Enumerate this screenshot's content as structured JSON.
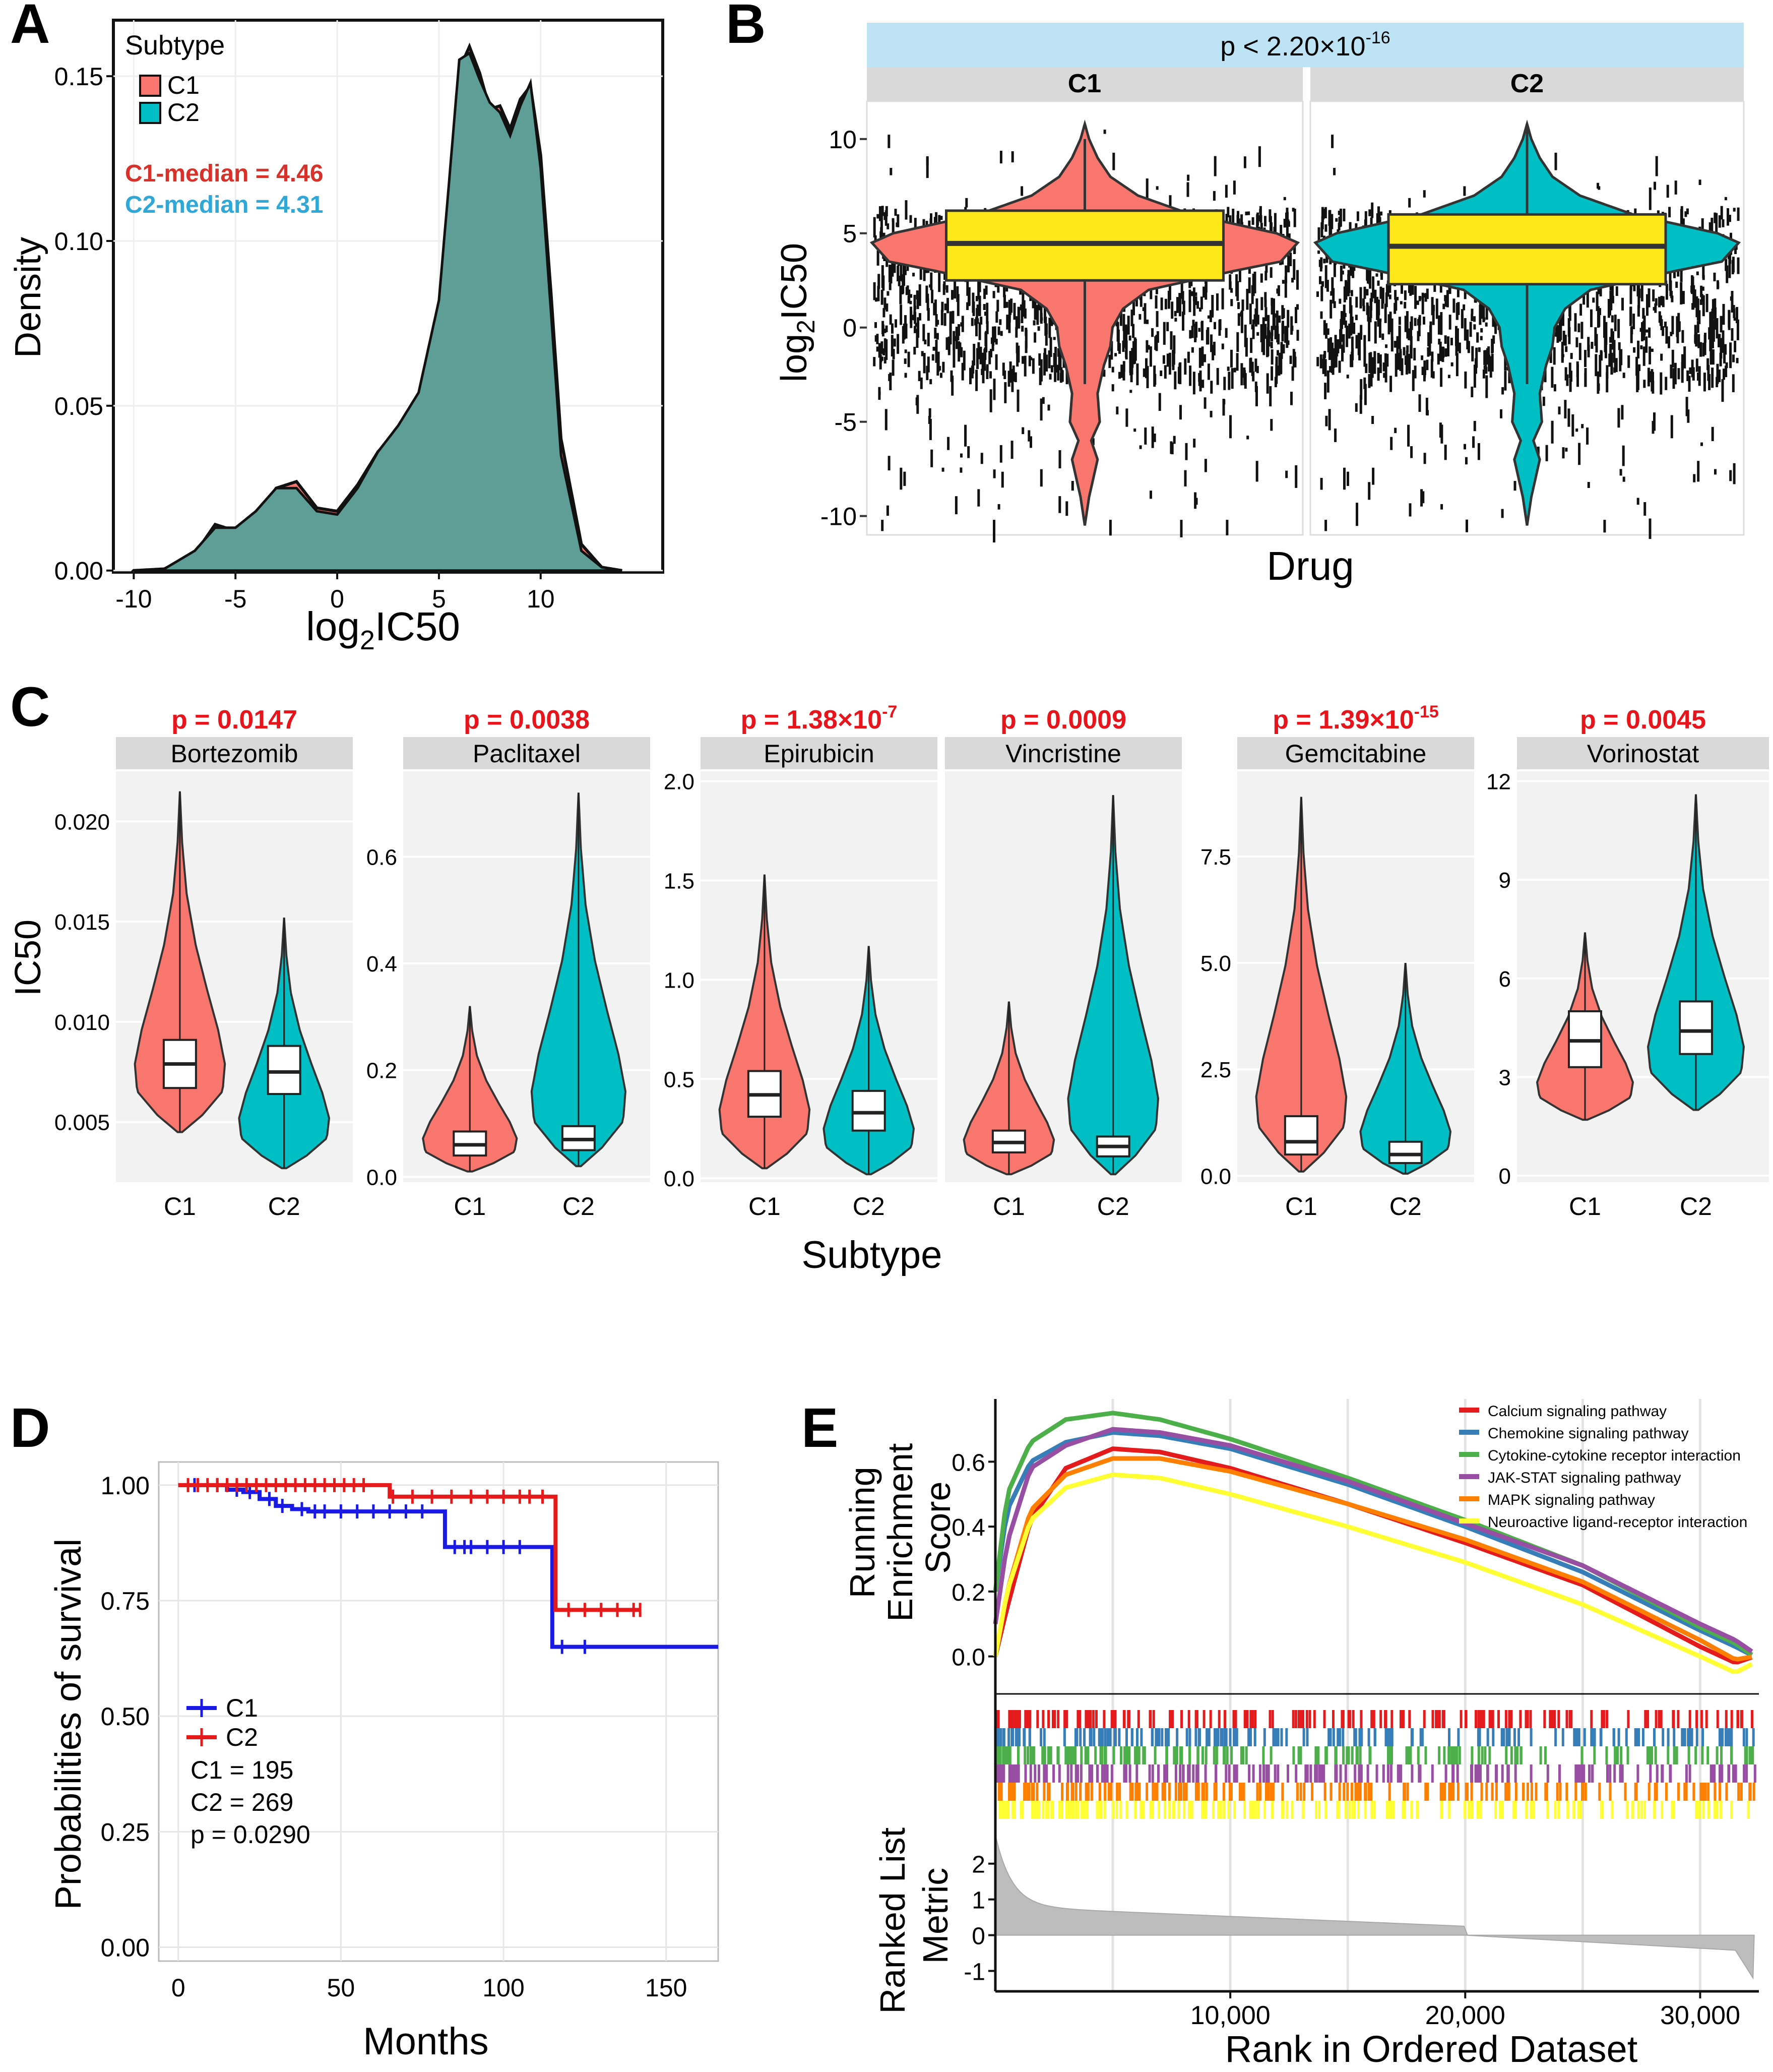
{
  "colors": {
    "c1": "#F8766D",
    "c2": "#00BFC4",
    "overlap": "#5F9E96",
    "yellow": "#FFE81A",
    "panelbg": "#EBEBEB",
    "strip": "#D9D9D9",
    "pstrip": "#BDE3F4",
    "red": "#E8141C",
    "km_c1": "#1A1AE6",
    "km_c2": "#E61A1A"
  },
  "panel_labels": [
    "A",
    "B",
    "C",
    "D",
    "E"
  ],
  "chart_data": [
    {
      "id": "A",
      "type": "area",
      "title": "",
      "xlabel_base": "log",
      "xlabel_sub": "2",
      "xlabel_rest": "IC50",
      "ylabel": "Density",
      "xlim": [
        -11,
        16
      ],
      "ylim": [
        -0.0005,
        0.167
      ],
      "xticks": [
        "-10",
        "-5",
        "0",
        "5",
        "10"
      ],
      "xtick_values": [
        -10,
        -5,
        0,
        5,
        10
      ],
      "yticks": [
        "0.00",
        "0.05",
        "0.10",
        "0.15"
      ],
      "ytick_values": [
        0,
        0.05,
        0.1,
        0.15
      ],
      "legend_title": "Subtype",
      "legend": [
        "C1",
        "C2"
      ],
      "annotations": [
        "C1-median = 4.46",
        "C2-median = 4.31"
      ],
      "series": [
        {
          "name": "C1",
          "x": [
            -10,
            -8.5,
            -7,
            -6,
            -5,
            -4,
            -3,
            -2,
            -1,
            0,
            1,
            2,
            3,
            4,
            5,
            5.5,
            6,
            6.5,
            7,
            7.5,
            8,
            8.5,
            9,
            9.5,
            10,
            10.5,
            11,
            12,
            13,
            14
          ],
          "values": [
            0,
            0.0005,
            0.005,
            0.014,
            0.012,
            0.016,
            0.025,
            0.027,
            0.019,
            0.018,
            0.026,
            0.036,
            0.043,
            0.052,
            0.08,
            0.115,
            0.152,
            0.159,
            0.151,
            0.14,
            0.141,
            0.134,
            0.143,
            0.147,
            0.126,
            0.085,
            0.04,
            0.008,
            0.001,
            0
          ]
        },
        {
          "name": "C2",
          "x": [
            -10,
            -8.5,
            -7,
            -6,
            -5,
            -4,
            -3,
            -2,
            -1,
            0,
            1,
            2,
            3,
            4,
            5,
            5.5,
            6,
            6.5,
            7,
            7.5,
            8,
            8.5,
            9,
            9.5,
            10,
            10.5,
            11,
            12,
            13,
            14
          ],
          "values": [
            0,
            0.0005,
            0.006,
            0.013,
            0.013,
            0.018,
            0.025,
            0.025,
            0.018,
            0.017,
            0.025,
            0.036,
            0.044,
            0.054,
            0.082,
            0.118,
            0.155,
            0.157,
            0.149,
            0.142,
            0.139,
            0.132,
            0.141,
            0.148,
            0.122,
            0.079,
            0.035,
            0.006,
            0.001,
            0
          ]
        }
      ]
    },
    {
      "id": "B",
      "type": "violin",
      "ptext_main": "p < 2.20×10",
      "ptext_sup": "-16",
      "facets": [
        "C1",
        "C2"
      ],
      "xlabel": "Drug",
      "ylabel_base": "log",
      "ylabel_sub": "2",
      "ylabel_rest": "IC50",
      "ylim": [
        -11,
        12
      ],
      "yticks": [
        "-10",
        "-5",
        "0",
        "5",
        "10"
      ],
      "ytick_values": [
        -10,
        -5,
        0,
        5,
        10
      ],
      "box": [
        {
          "name": "C1",
          "q1": 2.5,
          "median": 4.46,
          "q3": 6.2,
          "lw": -3,
          "uw": 10
        },
        {
          "name": "C2",
          "q1": 2.3,
          "median": 4.31,
          "q3": 6.0,
          "lw": -3,
          "uw": 10.8
        }
      ]
    },
    {
      "id": "C",
      "type": "violin",
      "xlabel": "Subtype",
      "ylabel": "IC50",
      "categories": [
        "C1",
        "C2"
      ],
      "facets": [
        {
          "drug": "Bortezomib",
          "p_main": "p = 0.0147",
          "p_sup": "",
          "ylim": [
            0.002,
            0.0225
          ],
          "yticks": [
            "0.005",
            "0.010",
            "0.015",
            "0.020"
          ],
          "ytick_values": [
            0.005,
            0.01,
            0.015,
            0.02
          ],
          "box": [
            {
              "q1": 0.0067,
              "median": 0.0079,
              "q3": 0.0091,
              "lw": 0.0045,
              "uw": 0.0125
            },
            {
              "q1": 0.0064,
              "median": 0.0075,
              "q3": 0.0088,
              "lw": 0.0038,
              "uw": 0.0125
            }
          ],
          "maxv": [
            0.0215,
            0.0152
          ],
          "minv": [
            0.0045,
            0.0027
          ]
        },
        {
          "drug": "Paclitaxel",
          "p_main": "p = 0.0038",
          "p_sup": "",
          "ylim": [
            -0.01,
            0.76
          ],
          "yticks": [
            "0.0",
            "0.2",
            "0.4",
            "0.6"
          ],
          "ytick_values": [
            0,
            0.2,
            0.4,
            0.6
          ],
          "box": [
            {
              "q1": 0.04,
              "median": 0.06,
              "q3": 0.085,
              "lw": 0.01,
              "uw": 0.15
            },
            {
              "q1": 0.05,
              "median": 0.07,
              "q3": 0.095,
              "lw": 0.02,
              "uw": 0.16
            }
          ],
          "maxv": [
            0.32,
            0.72
          ],
          "minv": [
            0.01,
            0.02
          ]
        },
        {
          "drug": "Epirubicin",
          "p_main": "p = 1.38×10",
          "p_sup": "-7",
          "ylim": [
            -0.02,
            2.05
          ],
          "yticks": [
            "0.0",
            "0.5",
            "1.0",
            "1.5",
            "2.0"
          ],
          "ytick_values": [
            0,
            0.5,
            1.0,
            1.5,
            2.0
          ],
          "box": [
            {
              "q1": 0.31,
              "median": 0.42,
              "q3": 0.54,
              "lw": 0.05,
              "uw": 0.85
            },
            {
              "q1": 0.24,
              "median": 0.33,
              "q3": 0.44,
              "lw": 0.02,
              "uw": 0.75
            }
          ],
          "maxv": [
            1.53,
            1.17
          ],
          "minv": [
            0.05,
            0.02
          ]
        },
        {
          "drug": "Vincristine",
          "p_main": "p = 0.0009",
          "p_sup": "",
          "ylim": [
            -0.02,
            2.05
          ],
          "yticks": [],
          "ytick_values": [],
          "box": [
            {
              "q1": 0.13,
              "median": 0.18,
              "q3": 0.24,
              "lw": 0.02,
              "uw": 0.4
            },
            {
              "q1": 0.11,
              "median": 0.16,
              "q3": 0.21,
              "lw": 0.02,
              "uw": 0.35
            }
          ],
          "maxv": [
            0.89,
            1.93
          ],
          "minv": [
            0.02,
            0.02
          ]
        },
        {
          "drug": "Gemcitabine",
          "p_main": "p = 1.39×10",
          "p_sup": "-15",
          "ylim": [
            -0.15,
            9.5
          ],
          "yticks": [
            "0.0",
            "2.5",
            "5.0",
            "7.5"
          ],
          "ytick_values": [
            0,
            2.5,
            5.0,
            7.5
          ],
          "box": [
            {
              "q1": 0.5,
              "median": 0.8,
              "q3": 1.4,
              "lw": 0.1,
              "uw": 2.8
            },
            {
              "q1": 0.3,
              "median": 0.5,
              "q3": 0.8,
              "lw": 0.05,
              "uw": 1.5
            }
          ],
          "maxv": [
            8.9,
            5.0
          ],
          "minv": [
            0.1,
            0.05
          ]
        },
        {
          "drug": "Vorinostat",
          "p_main": "p = 0.0045",
          "p_sup": "",
          "ylim": [
            -0.2,
            12.3
          ],
          "yticks": [
            "0",
            "3",
            "6",
            "9",
            "12"
          ],
          "ytick_values": [
            0,
            3,
            6,
            9,
            12
          ],
          "box": [
            {
              "q1": 3.3,
              "median": 4.1,
              "q3": 5.0,
              "lw": 1.7,
              "uw": 7.4
            },
            {
              "q1": 3.7,
              "median": 4.4,
              "q3": 5.3,
              "lw": 2.0,
              "uw": 7.8
            }
          ],
          "maxv": [
            7.4,
            11.6
          ],
          "minv": [
            1.7,
            2.0
          ]
        }
      ]
    },
    {
      "id": "D",
      "type": "line",
      "xlabel": "Months",
      "ylabel": "Probabilities of survival",
      "xlim": [
        -6,
        166
      ],
      "ylim": [
        -0.03,
        1.05
      ],
      "xticks": [
        "0",
        "50",
        "100",
        "150"
      ],
      "xtick_values": [
        0,
        50,
        100,
        150
      ],
      "yticks": [
        "0.00",
        "0.25",
        "0.50",
        "0.75",
        "1.00"
      ],
      "ytick_values": [
        0,
        0.25,
        0.5,
        0.75,
        1.0
      ],
      "legend": [
        "C1",
        "C2"
      ],
      "annotations": [
        "C1 = 195",
        "C2 = 269",
        "p = 0.0290"
      ],
      "series": [
        {
          "name": "C1",
          "x": [
            0,
            10,
            15,
            20,
            25,
            30,
            35,
            40,
            82,
            112,
            115,
            166
          ],
          "values": [
            1.0,
            1.0,
            0.99,
            0.985,
            0.97,
            0.955,
            0.948,
            0.943,
            0.866,
            0.866,
            0.65,
            0.65
          ],
          "censor": [
            5,
            12,
            18,
            22,
            28,
            32,
            38,
            42,
            45,
            50,
            55,
            60,
            65,
            70,
            75,
            85,
            88,
            90,
            95,
            100,
            105,
            118,
            125
          ]
        },
        {
          "name": "C2",
          "x": [
            0,
            60,
            65,
            115,
            116,
            142
          ],
          "values": [
            1.0,
            1.0,
            0.975,
            0.975,
            0.73,
            0.73
          ],
          "censor": [
            3,
            6,
            9,
            12,
            15,
            18,
            21,
            24,
            27,
            30,
            33,
            36,
            39,
            42,
            45,
            48,
            51,
            54,
            57,
            66,
            72,
            78,
            84,
            90,
            95,
            100,
            105,
            108,
            112,
            120,
            125,
            130,
            135,
            140,
            142
          ]
        }
      ]
    },
    {
      "id": "E",
      "type": "line",
      "xlabel": "Rank in Ordered Dataset",
      "ylabel_top": [
        "Running",
        "Enrichment",
        "Score"
      ],
      "ylabel_bottom": [
        "Ranked List",
        "Metric"
      ],
      "xlim": [
        0,
        32500
      ],
      "xticks": [
        "10,000",
        "20,000",
        "30,000"
      ],
      "xtick_values": [
        10000,
        20000,
        30000
      ],
      "yticks": [
        "0.0",
        "0.2",
        "0.4",
        "0.6"
      ],
      "ytick_values": [
        0,
        0.2,
        0.4,
        0.6
      ],
      "yticks_bottom": [
        "-1",
        "0",
        "1",
        "2"
      ],
      "ytick_values_bottom": [
        -1,
        0,
        1,
        2
      ],
      "ylim": [
        -0.1,
        0.77
      ],
      "ylim_bottom": [
        -1.5,
        2.8
      ],
      "legend": [
        "Calcium signaling pathway",
        "Chemokine signaling pathway",
        "Cytokine-cytokine receptor interaction",
        "JAK-STAT signaling pathway",
        "MAPK signaling pathway",
        "Neuroactive ligand-receptor interaction"
      ],
      "series": [
        {
          "name": "Calcium signaling pathway",
          "color": "#E41A1C",
          "x": [
            0,
            500,
            1500,
            3000,
            5000,
            7000,
            10000,
            15000,
            20000,
            25000,
            30000,
            31500,
            32300
          ],
          "values": [
            0.0,
            0.15,
            0.42,
            0.58,
            0.64,
            0.63,
            0.58,
            0.47,
            0.35,
            0.22,
            0.03,
            -0.02,
            0.0
          ]
        },
        {
          "name": "Chemokine signaling pathway",
          "color": "#377EB8",
          "x": [
            0,
            500,
            1500,
            3000,
            5000,
            7000,
            10000,
            15000,
            20000,
            25000,
            30000,
            31500,
            32300
          ],
          "values": [
            0.2,
            0.45,
            0.6,
            0.66,
            0.69,
            0.68,
            0.64,
            0.53,
            0.4,
            0.26,
            0.08,
            0.03,
            0.0
          ]
        },
        {
          "name": "Cytokine-cytokine receptor interaction",
          "color": "#4DAF4A",
          "x": [
            0,
            500,
            1500,
            3000,
            5000,
            7000,
            10000,
            15000,
            20000,
            25000,
            30000,
            31500,
            32300
          ],
          "values": [
            0.2,
            0.5,
            0.66,
            0.73,
            0.75,
            0.73,
            0.67,
            0.55,
            0.42,
            0.28,
            0.09,
            0.04,
            0.0
          ]
        },
        {
          "name": "JAK-STAT signaling pathway",
          "color": "#984EA3",
          "x": [
            0,
            500,
            1500,
            3000,
            5000,
            7000,
            10000,
            15000,
            20000,
            25000,
            30000,
            31500,
            32300
          ],
          "values": [
            0.1,
            0.35,
            0.58,
            0.65,
            0.7,
            0.69,
            0.65,
            0.54,
            0.41,
            0.28,
            0.1,
            0.05,
            0.01
          ]
        },
        {
          "name": "MAPK signaling pathway",
          "color": "#FF7F00",
          "x": [
            0,
            500,
            1500,
            3000,
            5000,
            7000,
            10000,
            15000,
            20000,
            25000,
            30000,
            31500,
            32300
          ],
          "values": [
            0.0,
            0.2,
            0.45,
            0.56,
            0.61,
            0.61,
            0.57,
            0.47,
            0.36,
            0.23,
            0.05,
            -0.01,
            0.0
          ]
        },
        {
          "name": "Neuroactive ligand-receptor interaction",
          "color": "#FFFF33",
          "x": [
            0,
            500,
            1500,
            3000,
            5000,
            7000,
            10000,
            15000,
            20000,
            25000,
            30000,
            31500,
            32300
          ],
          "values": [
            0.0,
            0.2,
            0.42,
            0.52,
            0.56,
            0.55,
            0.5,
            0.4,
            0.29,
            0.16,
            0.0,
            -0.05,
            -0.02
          ]
        }
      ]
    }
  ]
}
